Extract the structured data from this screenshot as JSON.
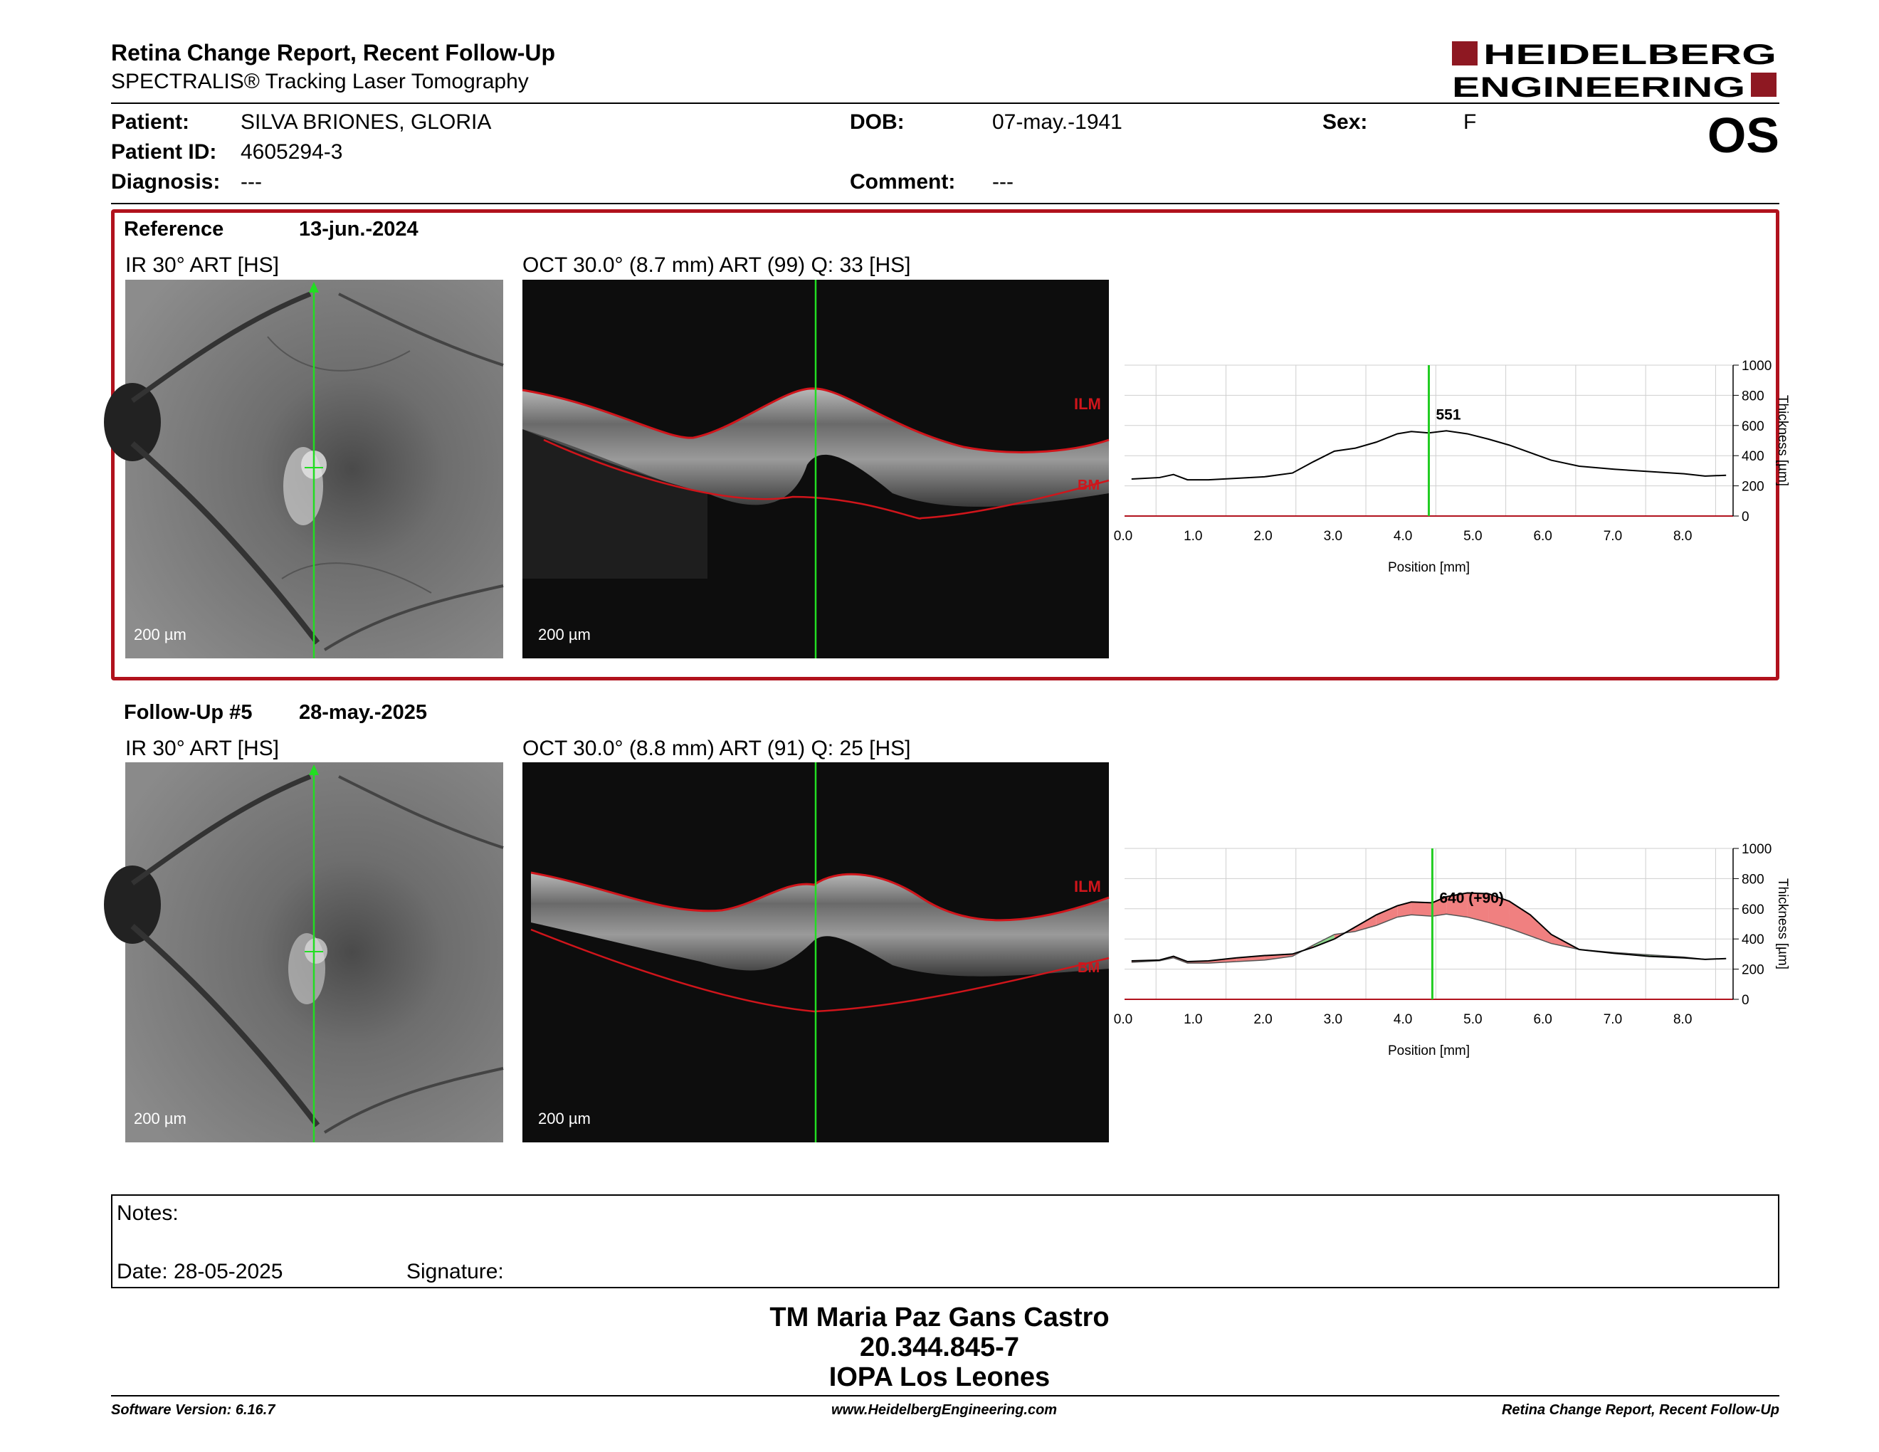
{
  "header": {
    "title": "Retina Change Report, Recent Follow-Up",
    "subtitle": "SPECTRALIS® Tracking Laser Tomography",
    "logo_line1": "HEIDELBERG",
    "logo_line2": "ENGINEERING",
    "eye": "OS"
  },
  "patient": {
    "patient_label": "Patient:",
    "patient_name": "SILVA BRIONES, GLORIA",
    "id_label": "Patient ID:",
    "id_value": "4605294-3",
    "diagnosis_label": "Diagnosis:",
    "diagnosis_value": "---",
    "dob_label": "DOB:",
    "dob_value": "07-may.-1941",
    "comment_label": "Comment:",
    "comment_value": "---",
    "sex_label": "Sex:",
    "sex_value": "F"
  },
  "reference": {
    "label": "Reference",
    "date": "13-jun.-2024",
    "ir_caption": "IR 30° ART [HS]",
    "oct_caption": "OCT 30.0° (8.7 mm) ART (99) Q: 33 [HS]",
    "ir_scale": "200 µm",
    "oct_scale": "200 µm",
    "ilm": "ILM",
    "bm": "BM",
    "marker_label": "551"
  },
  "followup": {
    "label": "Follow-Up #5",
    "date": "28-may.-2025",
    "ir_caption": "IR 30° ART [HS]",
    "oct_caption": "OCT 30.0° (8.8 mm) ART (91) Q: 25 [HS]",
    "ir_scale": "200 µm",
    "oct_scale": "200 µm",
    "ilm": "ILM",
    "bm": "BM",
    "marker_label": "640 (+90)"
  },
  "colors": {
    "frame": "#b1121d",
    "trace": "#000000",
    "marker": "#22cc22",
    "increase": "#f08080",
    "decrease": "#8fd88f",
    "oct_line": "#d0151b"
  },
  "chart_data": [
    {
      "type": "line",
      "title": "",
      "xlabel": "Position [mm]",
      "ylabel": "Thickness [µm]",
      "xlim": [
        0,
        8.7
      ],
      "ylim": [
        0,
        1000
      ],
      "xticks": [
        "0.0",
        "1.0",
        "2.0",
        "3.0",
        "4.0",
        "5.0",
        "6.0",
        "7.0",
        "8.0"
      ],
      "yticks": [
        "0",
        "200",
        "400",
        "600",
        "800",
        "1000"
      ],
      "marker_x": 4.35,
      "series": [
        {
          "x": [
            0.1,
            0.5,
            0.7,
            0.9,
            1.2,
            1.6,
            2.0,
            2.4,
            2.7,
            3.0,
            3.3,
            3.6,
            3.9,
            4.1,
            4.35,
            4.6,
            4.9,
            5.2,
            5.5,
            5.8,
            6.1,
            6.5,
            7.0,
            7.5,
            8.0,
            8.3,
            8.6
          ],
          "values": [
            245,
            255,
            275,
            240,
            240,
            250,
            260,
            285,
            360,
            430,
            450,
            490,
            545,
            560,
            551,
            565,
            545,
            510,
            470,
            420,
            370,
            330,
            310,
            295,
            280,
            265,
            270
          ]
        }
      ]
    },
    {
      "type": "area",
      "title": "",
      "xlabel": "Position [mm]",
      "ylabel": "Thickness [µm]",
      "xlim": [
        0,
        8.7
      ],
      "ylim": [
        0,
        1000
      ],
      "xticks": [
        "0.0",
        "1.0",
        "2.0",
        "3.0",
        "4.0",
        "5.0",
        "6.0",
        "7.0",
        "8.0"
      ],
      "yticks": [
        "0",
        "200",
        "400",
        "600",
        "800",
        "1000"
      ],
      "marker_x": 4.4,
      "series": [
        {
          "x": [
            0.1,
            0.5,
            0.7,
            0.9,
            1.2,
            1.6,
            2.0,
            2.4,
            2.7,
            3.0,
            3.3,
            3.6,
            3.9,
            4.1,
            4.4,
            4.6,
            4.9,
            5.2,
            5.5,
            5.8,
            6.1,
            6.5,
            7.0,
            7.5,
            8.0,
            8.3,
            8.6
          ],
          "values": [
            255,
            260,
            285,
            250,
            255,
            275,
            290,
            300,
            345,
            400,
            480,
            560,
            620,
            645,
            640,
            680,
            705,
            700,
            650,
            560,
            430,
            330,
            305,
            285,
            275,
            265,
            270
          ]
        },
        {
          "x": [
            0.1,
            0.5,
            0.7,
            0.9,
            1.2,
            1.6,
            2.0,
            2.4,
            2.7,
            3.0,
            3.3,
            3.6,
            3.9,
            4.1,
            4.4,
            4.6,
            4.9,
            5.2,
            5.5,
            5.8,
            6.1,
            6.5,
            7.0,
            7.5,
            8.0,
            8.3,
            8.6
          ],
          "values": [
            245,
            255,
            275,
            240,
            240,
            250,
            260,
            285,
            360,
            430,
            450,
            490,
            545,
            560,
            551,
            565,
            545,
            510,
            470,
            420,
            370,
            330,
            310,
            295,
            280,
            265,
            270
          ]
        }
      ]
    }
  ],
  "notes": {
    "notes_label": "Notes:",
    "date_label": "Date: 28-05-2025",
    "signature_label": "Signature:"
  },
  "signature": {
    "name": "TM Maria Paz Gans Castro",
    "rut": "20.344.845-7",
    "place": "IOPA Los Leones"
  },
  "footer": {
    "software": "Software Version: 6.16.7",
    "website": "www.HeidelbergEngineering.com",
    "report": "Retina Change Report, Recent Follow-Up"
  }
}
